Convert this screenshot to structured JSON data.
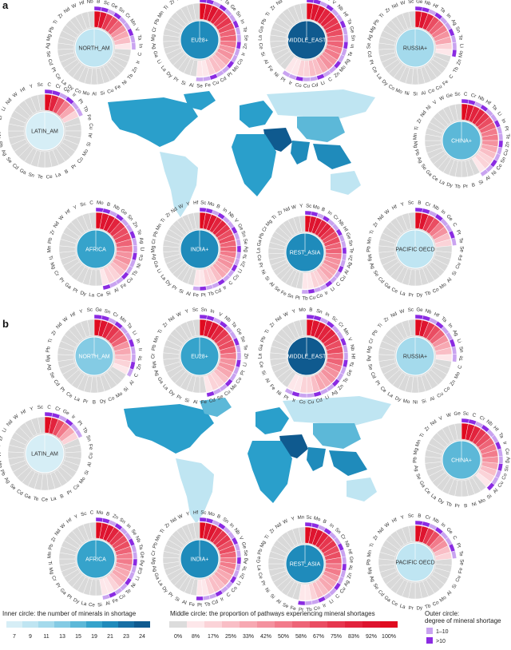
{
  "panels": [
    {
      "label": "a",
      "chart_data": {
        "type": "sunburst",
        "regions": [
          {
            "name": "NORTH_AM",
            "inner_count": 10,
            "minerals": [
              "B",
              "Sc",
              "Ge",
              "Sn",
              "Cr",
              "Mn",
              "V",
              "Ta",
              "In",
              "C",
              "Ir",
              "Zn",
              "Tb",
              "Ni",
              "Fe",
              "Cu",
              "Si",
              "Al",
              "Mo",
              "Co",
              "Dy",
              "La",
              "Ce",
              "Pt",
              "Cd",
              "Se",
              "Ag",
              "Mg",
              "Pb",
              "Ti",
              "Zr",
              "Nd",
              "W",
              "Hf",
              "Nb"
            ]
          },
          {
            "name": "EU28+",
            "inner_count": 21,
            "minerals": [
              "Sc",
              "V",
              "Nb",
              "Ta",
              "Ge",
              "Sn",
              "In",
              "Te",
              "Se",
              "Zn",
              "Ir",
              "Co",
              "Mo",
              "Pt",
              "Cd",
              "Cu",
              "Fe",
              "Se",
              "Al",
              "Si",
              "Pr",
              "Dy",
              "La",
              "Li",
              "Ga",
              "Ag",
              "Mg",
              "Cr",
              "Pb",
              "Mn",
              "Ti",
              "Zr",
              "Nd",
              "W",
              "Y"
            ]
          },
          {
            "name": "MIDDLE_EAST",
            "inner_count": 24,
            "minerals": [
              "B",
              "Cr",
              "Mn",
              "V",
              "Nb",
              "Hf",
              "Ta",
              "Ge",
              "Sn",
              "In",
              "Te",
              "Ag",
              "Mo",
              "Zn",
              "C",
              "Li",
              "Cd",
              "Cu",
              "Co",
              "Ir",
              "Pt",
              "Ni",
              "Fe",
              "Al",
              "Si",
              "Ce",
              "La",
              "Ga",
              "Pb",
              "Ti",
              "Zr",
              "Nd",
              "W",
              "Y",
              "Sc"
            ]
          },
          {
            "name": "RUSSIA+",
            "inner_count": 11,
            "minerals": [
              "Ge",
              "Nb",
              "Hf",
              "Ta",
              "In",
              "Ag",
              "Sn",
              "Te",
              "Li",
              "Mo",
              "Zn",
              "Tb",
              "C",
              "Fe",
              "Cu",
              "Co",
              "Al",
              "Si",
              "Ni",
              "Mo",
              "Co",
              "Dy",
              "La",
              "Ce",
              "Pt",
              "Cd",
              "Se",
              "Ag",
              "Mg",
              "Pb",
              "Ti",
              "Zr",
              "Nd",
              "W",
              "Sc"
            ]
          },
          {
            "name": "LATIN_AM",
            "inner_count": 7,
            "minerals": [
              "C",
              "Cr",
              "Ge",
              "Ir",
              "Pt",
              "Tb",
              "Fe",
              "Cu",
              "Al",
              "Si",
              "Mo",
              "Co",
              "Pr",
              "B",
              "La",
              "Ce",
              "Te",
              "Sn",
              "Ga",
              "Cd",
              "Se",
              "Ag",
              "Pb",
              "Mn",
              "Ti",
              "Zr",
              "Li",
              "Nd",
              "W",
              "Hf",
              "Y",
              "Sc"
            ]
          },
          {
            "name": "CHINA+",
            "inner_count": 17,
            "minerals": [
              "C",
              "Cr",
              "Nb",
              "Hf",
              "Ta",
              "Li",
              "In",
              "Pt",
              "Te",
              "Zn",
              "Cu",
              "Sn",
              "Co",
              "Ni",
              "Al",
              "Si",
              "B",
              "Pr",
              "Tb",
              "Dy",
              "La",
              "Ce",
              "Ga",
              "Se",
              "Ag",
              "Pb",
              "Mg",
              "Mn",
              "Ti",
              "Zr",
              "Nd",
              "Ni",
              "V",
              "W",
              "Ge",
              "Sc"
            ]
          },
          {
            "name": "AFRICA",
            "inner_count": 19,
            "minerals": [
              "Mo",
              "B",
              "Nb",
              "Ge",
              "Sn",
              "Zn",
              "Te",
              "Ag",
              "Li",
              "Co",
              "Ni",
              "Tb",
              "Cu",
              "Fe",
              "Al",
              "Si",
              "Ce",
              "La",
              "Dy",
              "Pt",
              "Ga",
              "Pr",
              "Cr",
              "Mg",
              "Ti",
              "Mn",
              "Pb",
              "Zr",
              "Nd",
              "W",
              "Hf",
              "Y",
              "Sc",
              "C"
            ]
          },
          {
            "name": "INDIA+",
            "inner_count": 21,
            "minerals": [
              "Sc",
              "Mo",
              "B",
              "In",
              "Nb",
              "V",
              "Ge",
              "Sn",
              "Se",
              "Ag",
              "Te",
              "Zn",
              "Li",
              "Co",
              "C",
              "Ir",
              "Cd",
              "Tb",
              "Pt",
              "Fe",
              "Al",
              "Si",
              "Pr",
              "Dy",
              "La",
              "Li",
              "Ga",
              "Ag",
              "Mg",
              "Cr",
              "Pb",
              "Mn",
              "Ti",
              "Zr",
              "Nd",
              "W",
              "Y",
              "Hf"
            ]
          },
          {
            "name": "REST_ASIA",
            "inner_count": 21,
            "minerals": [
              "Sc",
              "Mo",
              "B",
              "In",
              "Cr",
              "Nb",
              "Hf",
              "Ge",
              "Sn",
              "Te",
              "Zn",
              "Ag",
              "Al",
              "Cu",
              "C",
              "Li",
              "Ir",
              "Co",
              "Cu",
              "Tb",
              "Pt",
              "Sn",
              "Fe",
              "Se",
              "Al",
              "Si",
              "Ni",
              "Pr",
              "Ce",
              "La",
              "Ga",
              "Pb",
              "Cr",
              "Mg",
              "Ti",
              "Zr",
              "Nd",
              "W",
              "Y"
            ]
          },
          {
            "name": "PACIFIC OECD",
            "inner_count": 9,
            "minerals": [
              "B",
              "Cr",
              "Nb",
              "In",
              "Ge",
              "C",
              "Pt",
              "Te",
              "Se",
              "Fe",
              "Cu",
              "Si",
              "Al",
              "Mo",
              "Co",
              "Tb",
              "Dy",
              "Pr",
              "La",
              "Ce",
              "Ga",
              "Cd",
              "Se",
              "Ag",
              "Mg",
              "Pb",
              "Mn",
              "Ti",
              "Zr",
              "Nd",
              "W",
              "Hf",
              "Y",
              "Sc"
            ]
          }
        ]
      }
    },
    {
      "label": "b",
      "chart_data": {
        "type": "sunburst",
        "regions": [
          {
            "name": "NORTH_AM",
            "inner_count": 13,
            "minerals": [
              "Ge",
              "Sn",
              "Cr",
              "Mn",
              "Ta",
              "Li",
              "In",
              "Ir",
              "Te",
              "Zn",
              "C",
              "Al",
              "Si",
              "Mo",
              "Co",
              "Dy",
              "B",
              "Pr",
              "La",
              "Ce",
              "Pt",
              "Cd",
              "Se",
              "Ag",
              "Mg",
              "Pb",
              "Ti",
              "Zr",
              "Nd",
              "W",
              "Hf",
              "Y",
              "Sc"
            ]
          },
          {
            "name": "EU28+",
            "inner_count": 19,
            "minerals": [
              "Sn",
              "In",
              "V",
              "Nb",
              "Ta",
              "Ge",
              "Se",
              "Te",
              "Zn",
              "Li",
              "Pt",
              "Co",
              "Mo",
              "Cu",
              "Se",
              "Cd",
              "Fe",
              "Al",
              "Si",
              "Pr",
              "Dy",
              "La",
              "Ga",
              "Ag",
              "Mg",
              "Cr",
              "Pb",
              "Mn",
              "Ti",
              "Zr",
              "Nd",
              "W",
              "Y",
              "Sc"
            ]
          },
          {
            "name": "MIDDLE_EAST",
            "inner_count": 24,
            "minerals": [
              "B",
              "Sn",
              "In",
              "Sc",
              "Cr",
              "Mn",
              "V",
              "Nb",
              "Hf",
              "Ta",
              "Ge",
              "Te",
              "Zn",
              "Ag",
              "Li",
              "Cd",
              "Cu",
              "Co",
              "Ir",
              "Pt",
              "Ni",
              "Fe",
              "Al",
              "Si",
              "Ce",
              "La",
              "Ga",
              "Pb",
              "Ti",
              "Zr",
              "Nd",
              "W",
              "Y",
              "Mo"
            ]
          },
          {
            "name": "RUSSIA+",
            "inner_count": 11,
            "minerals": [
              "Ge",
              "Nb",
              "Hf",
              "Ta",
              "In",
              "Ag",
              "Li",
              "Sn",
              "Te",
              "C",
              "Mo",
              "Zn",
              "Co",
              "Cu",
              "Al",
              "Si",
              "Ni",
              "Mo",
              "Dy",
              "La",
              "Ce",
              "Pt",
              "Cd",
              "Se",
              "Ag",
              "Mg",
              "Cr",
              "Pb",
              "Ti",
              "Zr",
              "Nd",
              "W",
              "Sc"
            ]
          },
          {
            "name": "LATIN_AM",
            "inner_count": 7,
            "minerals": [
              "C",
              "Cr",
              "Ge",
              "Ir",
              "Pt",
              "Tb",
              "Sn",
              "Fe",
              "Cu",
              "Al",
              "Si",
              "Mo",
              "Co",
              "Pr",
              "B",
              "La",
              "Ce",
              "Te",
              "Ga",
              "Cd",
              "Se",
              "Ag",
              "Pb",
              "Mg",
              "Mn",
              "Ti",
              "Zr",
              "Li",
              "Nd",
              "W",
              "Hf",
              "Y",
              "Sc"
            ]
          },
          {
            "name": "CHINA+",
            "inner_count": 15,
            "minerals": [
              "Sc",
              "C",
              "Cr",
              "Nb",
              "Hf",
              "Ta",
              "Ir",
              "Cu",
              "Ag",
              "Sn",
              "Co",
              "Cu",
              "Al",
              "Si",
              "Mo",
              "Ni",
              "B",
              "Pr",
              "Tb",
              "Dy",
              "La",
              "Ce",
              "Ga",
              "Se",
              "Ag",
              "Pb",
              "Mg",
              "Mn",
              "Ti",
              "Zr",
              "Nd",
              "V",
              "W",
              "Ge"
            ]
          },
          {
            "name": "AFRICA",
            "inner_count": 19,
            "minerals": [
              "Mo",
              "B",
              "Zn",
              "Sn",
              "In",
              "Se",
              "Nb",
              "Ta",
              "Ge",
              "Ag",
              "Cd",
              "Li",
              "Ni",
              "Te",
              "Cu",
              "Fe",
              "Al",
              "Si",
              "Ce",
              "La",
              "Dy",
              "Pt",
              "Ga",
              "Pr",
              "Cr",
              "Mg",
              "Ti",
              "Mn",
              "Pb",
              "Zr",
              "Nd",
              "W",
              "Hf",
              "Y",
              "Sc",
              "C"
            ]
          },
          {
            "name": "INDIA+",
            "inner_count": 21,
            "minerals": [
              "Sc",
              "Mo",
              "B",
              "Sn",
              "In",
              "Nb",
              "V",
              "Ge",
              "Se",
              "Ag",
              "Te",
              "Zn",
              "Li",
              "Co",
              "C",
              "Ir",
              "Cd",
              "Tb",
              "Pt",
              "Fe",
              "Al",
              "Si",
              "Pr",
              "Dy",
              "La",
              "Ga",
              "Ag",
              "Mg",
              "Cr",
              "Pb",
              "Mn",
              "Ti",
              "Zr",
              "Nd",
              "W",
              "Y",
              "Hf"
            ]
          },
          {
            "name": "REST_ASIA",
            "inner_count": 21,
            "minerals": [
              "Sc",
              "Mo",
              "B",
              "In",
              "Sn",
              "Cr",
              "Nb",
              "Hf",
              "Ge",
              "Te",
              "Zn",
              "Ag",
              "Cu",
              "C",
              "Li",
              "Ir",
              "Co",
              "Tb",
              "Pt",
              "Fe",
              "Se",
              "Al",
              "Si",
              "Ni",
              "Pr",
              "Ce",
              "La",
              "Ga",
              "Pb",
              "Mg",
              "Ti",
              "Zr",
              "Nd",
              "W",
              "Y",
              "Mn"
            ]
          },
          {
            "name": "PACIFIC OECD",
            "inner_count": 9,
            "minerals": [
              "B",
              "Cr",
              "Nb",
              "In",
              "Ge",
              "C",
              "Pt",
              "Te",
              "Se",
              "Fe",
              "Cu",
              "Si",
              "Al",
              "Mo",
              "Co",
              "Tb",
              "Dy",
              "Pr",
              "La",
              "Ce",
              "Ga",
              "Cd",
              "Se",
              "Ag",
              "Mg",
              "Pb",
              "Mn",
              "Ti",
              "Zr",
              "Nd",
              "W",
              "Hf",
              "Y",
              "Sc"
            ]
          }
        ]
      }
    }
  ],
  "legend": {
    "inner": {
      "title": "Inner circle: the number of minerals in shortage",
      "ticks": [
        "7",
        "9",
        "11",
        "13",
        "15",
        "19",
        "21",
        "23",
        "24"
      ],
      "colors": [
        "#d6eef6",
        "#bfe5f2",
        "#a4daec",
        "#84cbe4",
        "#5cb8d8",
        "#36a3cb",
        "#1f8bbb",
        "#176fa4",
        "#0f5a8f"
      ]
    },
    "middle": {
      "title": "Middle circle: the proportion of pathways experiencing mineral shortages",
      "ticks": [
        "0%",
        "8%",
        "17%",
        "25%",
        "33%",
        "42%",
        "50%",
        "58%",
        "67%",
        "75%",
        "83%",
        "92%",
        "100%"
      ],
      "colors": [
        "#dcdcdc",
        "#fde7ea",
        "#fbd3d8",
        "#f9bec6",
        "#f7a8b2",
        "#f4929f",
        "#f27b8b",
        "#ee6477",
        "#ea4d62",
        "#e6374f",
        "#e2233d",
        "#de142f",
        "#e00b1f"
      ]
    },
    "outer": {
      "title_line1": "Outer circle:",
      "title_line2": "degree of mineral shortage",
      "items": [
        {
          "label": "1–10",
          "color": "#c9a3f0"
        },
        {
          "label": ">10",
          "color": "#8b2be2"
        }
      ]
    }
  },
  "map_colors": [
    "#bfe5f2",
    "#5cb8d8",
    "#1f8bbb",
    "#0f5a8f"
  ]
}
